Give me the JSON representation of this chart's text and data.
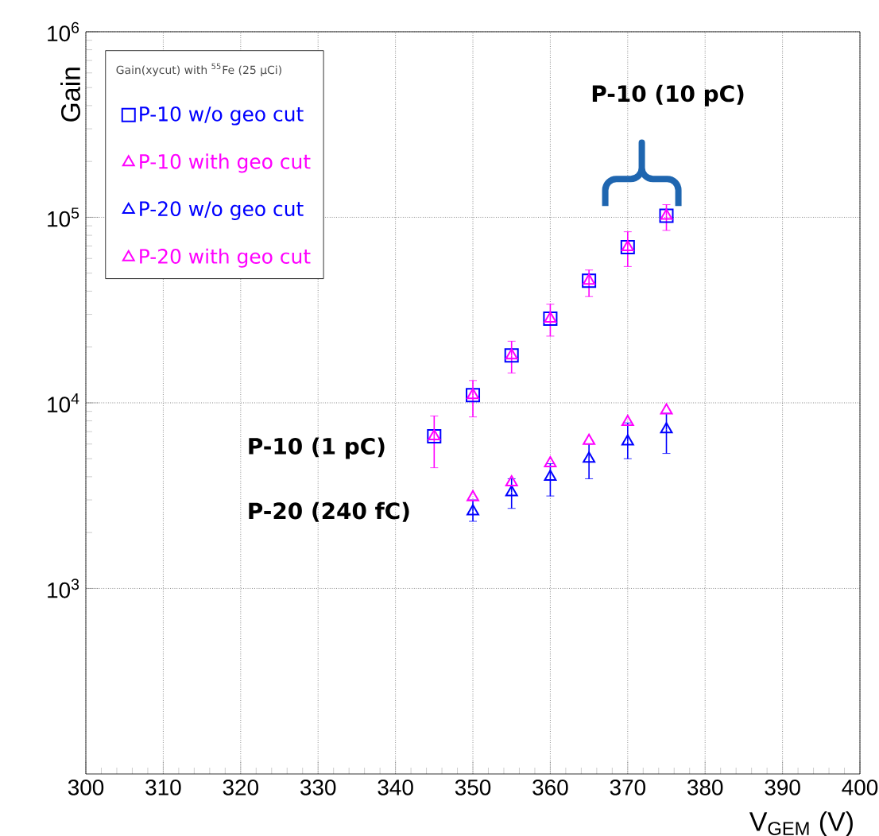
{
  "chart_data": {
    "type": "scatter",
    "xlabel": "V$_{GEM}$ (V)",
    "ylabel": "Gain",
    "legend_title": "Gain(xycut) with $^{55}$Fe (25 µCi)",
    "xlim": [
      300,
      400
    ],
    "xticks": [
      300,
      310,
      320,
      330,
      340,
      350,
      360,
      370,
      380,
      390,
      400
    ],
    "ylim": [
      100,
      1000000
    ],
    "yticks": [
      {
        "value": 1000,
        "label": "10$^{3}$"
      },
      {
        "value": 10000,
        "label": "10$^{4}$"
      },
      {
        "value": 100000,
        "label": "10$^{5}$"
      },
      {
        "value": 1000000,
        "label": "10$^{6}$"
      }
    ],
    "log": "y",
    "grid": true,
    "legend": "top left",
    "series": [
      {
        "name": "P-10 w/o geo cut",
        "color": "#0000ff",
        "marker": "square",
        "x": [
          345,
          350,
          355,
          360,
          365,
          370,
          375
        ],
        "values": [
          6600,
          11000,
          18000,
          28400,
          45500,
          69000,
          102000
        ]
      },
      {
        "name": "P-10 with geo cut",
        "color": "#ff00ff",
        "marker": "triangle",
        "x": [
          345,
          350,
          355,
          360,
          365,
          370,
          375
        ],
        "values": [
          6600,
          11000,
          18000,
          28400,
          45500,
          69000,
          102000
        ],
        "errors": [
          [
            4470,
            8500
          ],
          [
            8400,
            13200
          ],
          [
            14500,
            21500
          ],
          [
            22900,
            34000
          ],
          [
            37400,
            52000
          ],
          [
            54300,
            83600
          ],
          [
            85000,
            117000
          ]
        ]
      },
      {
        "name": "P-20 w/o geo cut",
        "color": "#0000ff",
        "marker": "triangle",
        "x": [
          350,
          355,
          360,
          365,
          370,
          375
        ],
        "values": [
          2600,
          3300,
          4000,
          5000,
          6200,
          7200
        ],
        "errors": [
          [
            2300,
            3000
          ],
          [
            2700,
            3900
          ],
          [
            3150,
            4700
          ],
          [
            3900,
            6000
          ],
          [
            5000,
            7800
          ],
          [
            5340,
            8800
          ]
        ]
      },
      {
        "name": "P-20 with geo cut",
        "color": "#ff00ff",
        "marker": "triangle",
        "x": [
          350,
          355,
          360,
          365,
          370,
          375
        ],
        "values": [
          3100,
          3730,
          4730,
          6240,
          7900,
          9100
        ]
      }
    ],
    "annotations": [
      "P-10 (10 pC)",
      "P-10 (1 pC)",
      "P-20 (240 fC)"
    ]
  }
}
